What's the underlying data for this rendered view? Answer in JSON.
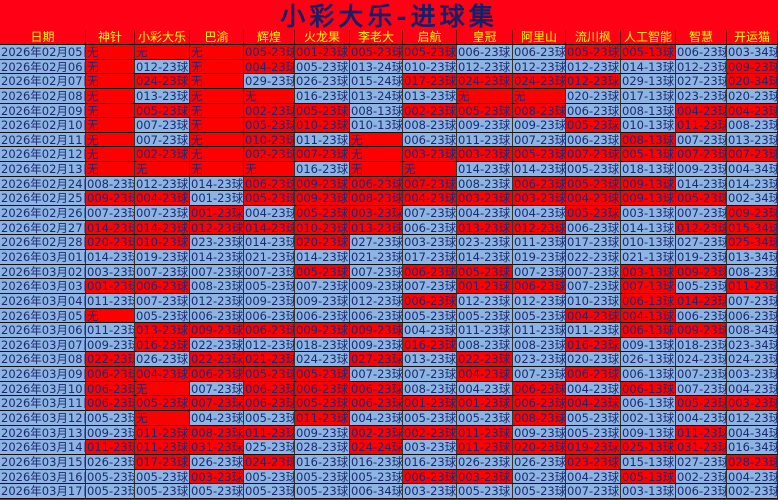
{
  "title": "小彩大乐-进球集",
  "colors": {
    "r": "#ff0000",
    "b": "#8db4e2",
    "header_bg": "#ff0015",
    "header_text": "#ffff00",
    "text": "#1b2a70"
  },
  "columns": [
    "日期",
    "神针",
    "小彩大乐",
    "巴渝",
    "辉煌",
    "火龙果",
    "李老大",
    "启航",
    "皇冠",
    "阿里山",
    "流川枫",
    "人工智能",
    "智慧",
    "开运猫"
  ],
  "rows": [
    {
      "date": "2026年02月05日",
      "marks": "rrrrrrrbbrrbb",
      "cells": [
        "无",
        "无",
        "无",
        "005-23球",
        "001-23球",
        "005-23球",
        "005-23球",
        "006-23球",
        "006-23球",
        "005-23球",
        "005-13球",
        "006-23球",
        "003-34球"
      ]
    },
    {
      "date": "2026年02月06日",
      "marks": "rbrrbbbbbbbbr",
      "cells": [
        "无",
        "012-23球",
        "无",
        "004-23球",
        "005-23球",
        "013-24球",
        "010-23球",
        "012-23球",
        "012-23球",
        "012-23球",
        "014-13球",
        "012-23球",
        "009-23球"
      ]
    },
    {
      "date": "2026年02月07日",
      "marks": "rrrbbbrrrrbbr",
      "cells": [
        "无",
        "024-23球",
        "无",
        "029-23球",
        "026-23球",
        "015-24球",
        "017-23球",
        "024-23球",
        "024-23球",
        "012-23球",
        "029-13球",
        "027-23球",
        "020-34球"
      ]
    },
    {
      "date": "2026年02月08日",
      "marks": "rbrrbbbrrbbbb",
      "cells": [
        "无",
        "013-23球",
        "无",
        "无",
        "016-23球",
        "013-24球",
        "013-23球",
        "无",
        "无",
        "020-23球",
        "017-13球",
        "023-23球",
        "020-23球"
      ]
    },
    {
      "date": "2026年02月09日",
      "marks": "rrrrrbrrrbbrr",
      "cells": [
        "无",
        "005-23球",
        "无",
        "002-23球",
        "005-23球",
        "008-13球",
        "002-23球",
        "005-23球",
        "008-23球",
        "006-23球",
        "008-13球",
        "004-23球",
        "004-23球"
      ]
    },
    {
      "date": "2026年02月10日",
      "marks": "rbrrrbbbbrbrb",
      "cells": [
        "无",
        "007-23球",
        "无",
        "005-23球",
        "010-23球",
        "010-13球",
        "008-23球",
        "009-23球",
        "009-23球",
        "005-23球",
        "010-13球",
        "011-23球",
        "008-23球"
      ]
    },
    {
      "date": "2026年02月11日",
      "marks": "rbrrbrbbbbrbb",
      "cells": [
        "无",
        "007-23球",
        "无",
        "010-23球",
        "011-23球",
        "无",
        "006-23球",
        "011-23球",
        "007-23球",
        "006-23球",
        "008-13球",
        "007-23球",
        "013-23球"
      ]
    },
    {
      "date": "2026年02月12日",
      "marks": "rrrrrrrrrrrrr",
      "cells": [
        "无",
        "002-23球",
        "无",
        "002-23球",
        "007-23球",
        "无",
        "003-23球",
        "003-23球",
        "005-23球",
        "007-23球",
        "005-13球",
        "007-23球",
        "007-23球"
      ]
    },
    {
      "date": "2026年02月13日",
      "marks": "rrrrbrrbbbbbb",
      "cells": [
        "无",
        "无",
        "无",
        "无",
        "016-23球",
        "无",
        "无",
        "014-23球",
        "014-23球",
        "005-23球",
        "018-13球",
        "009-23球",
        "004-34球"
      ]
    },
    {
      "date": "2026年02月24日",
      "marks": "bbbrrrrbrrrbb",
      "cells": [
        "008-23球",
        "012-23球",
        "014-23球",
        "006-23球",
        "009-23球",
        "006-23球",
        "007-23球",
        "008-23球",
        "006-23球",
        "005-23球",
        "009-13球",
        "014-23球",
        "014-23球"
      ]
    },
    {
      "date": "2026年02月25日",
      "marks": "rrbrrrrrrrrrb",
      "cells": [
        "009-23球",
        "004-23球",
        "001-23球",
        "005-23球",
        "009-23球",
        "008-23球",
        "004-23球",
        "003-23球",
        "003-23球",
        "004-23球",
        "009-13球",
        "005-23球",
        "002-34球"
      ]
    },
    {
      "date": "2026年02月26日",
      "marks": "bbrbrrbbbrbbr",
      "cells": [
        "007-23球",
        "007-23球",
        "001-23球",
        "004-23球",
        "005-23球",
        "003-23球",
        "007-23球",
        "004-23球",
        "004-23球",
        "005-23球",
        "003-13球",
        "007-23球",
        "009-23球"
      ]
    },
    {
      "date": "2026年02月27日",
      "marks": "rrrrrrbrrbbrr",
      "cells": [
        "014-23球",
        "014-23球",
        "012-23球",
        "014-23球",
        "010-23球",
        "013-23球",
        "006-23球",
        "013-23球",
        "012-23球",
        "006-23球",
        "014-13球",
        "012-23球",
        "015-34球"
      ]
    },
    {
      "date": "2026年02月28日",
      "marks": "rrbbrbbbbbbbr",
      "cells": [
        "020-23球",
        "010-23球",
        "023-23球",
        "014-23球",
        "020-23球",
        "027-23球",
        "003-23球",
        "023-23球",
        "011-23球",
        "017-23球",
        "010-13球",
        "027-23球",
        "025-34球"
      ]
    },
    {
      "date": "2026年03月01日",
      "marks": "bbbbbbbbbbbbb",
      "cells": [
        "014-23球",
        "019-23球",
        "014-23球",
        "021-23球",
        "014-23球",
        "021-23球",
        "017-23球",
        "014-23球",
        "019-23球",
        "022-23球",
        "021-13球",
        "019-23球",
        "013-34球"
      ]
    },
    {
      "date": "2026年03月02日",
      "marks": "bbbbrbrrbbrrb",
      "cells": [
        "003-23球",
        "007-23球",
        "007-23球",
        "007-23球",
        "005-23球",
        "007-23球",
        "006-23球",
        "005-23球",
        "007-23球",
        "007-23球",
        "003-13球",
        "009-23球",
        "008-23球"
      ]
    },
    {
      "date": "2026年03月03日",
      "marks": "rrbbbbbrrbrbr",
      "cells": [
        "001-23球",
        "006-23球",
        "008-23球",
        "005-23球",
        "007-23球",
        "009-23球",
        "007-23球",
        "001-23球",
        "006-23球",
        "007-23球",
        "007-13球",
        "005-23球",
        "011-23球"
      ]
    },
    {
      "date": "2026年03月04日",
      "marks": "bbbbbbrbbbrrb",
      "cells": [
        "011-23球",
        "007-23球",
        "012-23球",
        "009-23球",
        "009-23球",
        "012-23球",
        "006-23球",
        "012-23球",
        "012-23球",
        "010-23球",
        "006-13球",
        "014-23球",
        "007-23球"
      ]
    },
    {
      "date": "2026年03月05日",
      "marks": "rbbbbbbbbrrbb",
      "cells": [
        "无",
        "005-23球",
        "006-23球",
        "006-23球",
        "006-23球",
        "006-23球",
        "005-23球",
        "005-23球",
        "005-23球",
        "004-23球",
        "004-13球",
        "006-23球",
        "006-23球"
      ]
    },
    {
      "date": "2026年03月06日",
      "marks": "brrrrrbbbbrrb",
      "cells": [
        "011-23球",
        "013-23球",
        "009-23球",
        "006-23球",
        "009-23球",
        "009-23球",
        "004-23球",
        "011-23球",
        "011-23球",
        "011-23球",
        "006-13球",
        "009-23球",
        "008-34球"
      ]
    },
    {
      "date": "2026年03月07日",
      "marks": "brbbbbrbbrbbb",
      "cells": [
        "009-23球",
        "016-23球",
        "022-23球",
        "012-23球",
        "018-23球",
        "009-23球",
        "016-23球",
        "008-23球",
        "008-23球",
        "016-23球",
        "009-13球",
        "018-23球",
        "023-34球"
      ]
    },
    {
      "date": "2026年03月08日",
      "marks": "rbrrbrbrbbbbb",
      "cells": [
        "022-23球",
        "026-23球",
        "022-23球",
        "021-23球",
        "024-23球",
        "027-23球",
        "013-23球",
        "022-23球",
        "023-23球",
        "020-23球",
        "026-13球",
        "024-23球",
        "024-23球"
      ]
    },
    {
      "date": "2026年03月09日",
      "marks": "rrrrrbbrbrbbb",
      "cells": [
        "006-23球",
        "004-23球",
        "006-23球",
        "005-23球",
        "005-23球",
        "007-23球",
        "007-23球",
        "004-23球",
        "007-23球",
        "006-23球",
        "006-13球",
        "007-23球",
        "003-23球"
      ]
    },
    {
      "date": "2026年03月10日",
      "marks": "rrbrrrbbrbrbb",
      "cells": [
        "006-23球",
        "无",
        "007-23球",
        "006-23球",
        "006-23球",
        "006-23球",
        "008-23球",
        "004-23球",
        "006-23球",
        "004-23球",
        "006-13球",
        "007-23球",
        "004-23球"
      ]
    },
    {
      "date": "2026年03月11日",
      "marks": "rrrrrrrrrrbrr",
      "cells": [
        "006-23球",
        "005-23球",
        "007-23球",
        "006-23球",
        "005-23球",
        "006-23球",
        "001-23球",
        "001-23球",
        "006-23球",
        "004-23球",
        "006-13球",
        "005-23球",
        "003-23球"
      ]
    },
    {
      "date": "2026年03月12日",
      "marks": "brbbrbbbrbbbb",
      "cells": [
        "005-23球",
        "无",
        "004-23球",
        "005-23球",
        "011-23球",
        "004-23球",
        "005-23球",
        "005-23球",
        "008-23球",
        "005-23球",
        "002-13球",
        "004-23球",
        "012-23球"
      ]
    },
    {
      "date": "2026年03月13日",
      "marks": "brrrbrrrbbbrb",
      "cells": [
        "009-23球",
        "011-23球",
        "008-23球",
        "011-23球",
        "009-23球",
        "002-23球",
        "002-23球",
        "011-23球",
        "009-23球",
        "005-23球",
        "009-13球",
        "011-23球",
        "004-34球"
      ]
    },
    {
      "date": "2026年03月14日",
      "marks": "rrrbbrbrrrrrb",
      "cells": [
        "011-23球",
        "011-23球",
        "031-23球",
        "025-23球",
        "028-23球",
        "024-24球",
        "003-23球",
        "011-23球",
        "020-23球",
        "019-23球",
        "025-13球",
        "031-23球",
        "016-34球"
      ]
    },
    {
      "date": "2026年03月15日",
      "marks": "brbrbbbbbrbbr",
      "cells": [
        "026-23球",
        "017-23球",
        "026-23球",
        "024-23球",
        "016-23球",
        "016-23球",
        "016-23球",
        "026-23球",
        "026-23球",
        "023-23球",
        "015-13球",
        "027-23球",
        "028-23球"
      ]
    },
    {
      "date": "2026年03月16日",
      "marks": "bbrbbbrrbbrbb",
      "cells": [
        "005-23球",
        "005-23球",
        "003-23球",
        "005-23球",
        "005-23球",
        "005-23球",
        "006-23球",
        "003-23球",
        "002-23球",
        "004-23球",
        "005-13球",
        "002-23球",
        "004-23球"
      ]
    },
    {
      "date": "2026年03月17日",
      "marks": "bbbbbbbbbbbbb",
      "cells": [
        "005-23球",
        "005-23球",
        "005-23球",
        "005-23球",
        "005-23球",
        "006-34球",
        "003-23球",
        "005-23球",
        "005-23球",
        "007-23球",
        "003-13球",
        "006-23球",
        "002-23球"
      ]
    }
  ]
}
